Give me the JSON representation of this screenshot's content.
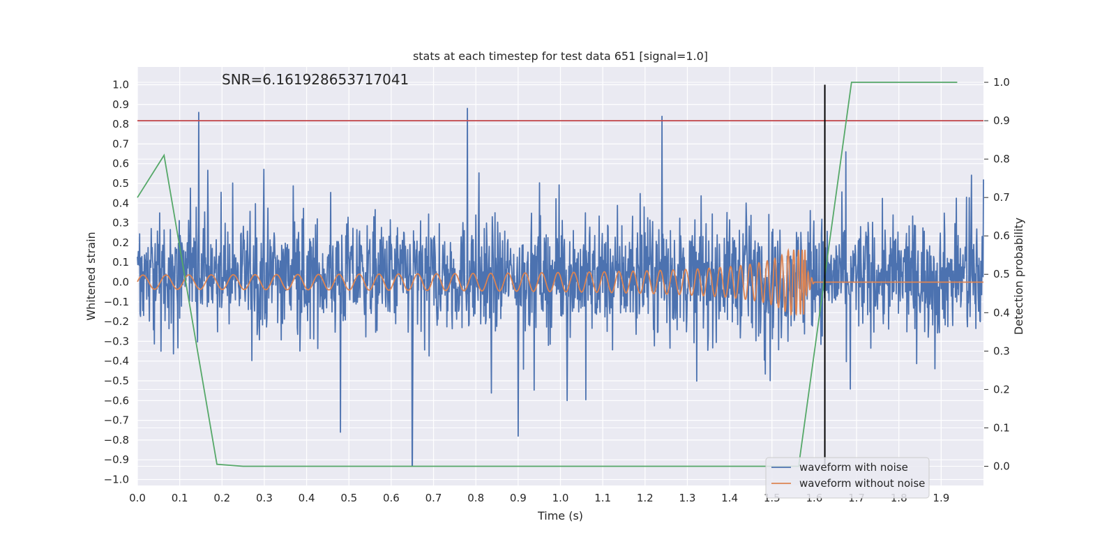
{
  "chart_data": {
    "type": "line",
    "title": "stats at each timestep for test data 651 [signal=1.0]",
    "xlabel": "Time (s)",
    "ylabel_left": "Whitened strain",
    "ylabel_right": "Detection probability",
    "annotation": "SNR=6.161928653717041",
    "xlim": [
      0.0,
      2.0
    ],
    "ylim_left": [
      -1.03,
      1.09
    ],
    "ylim_right": [
      -0.05,
      1.04
    ],
    "x_ticks": [
      "0.0",
      "0.1",
      "0.2",
      "0.3",
      "0.4",
      "0.5",
      "0.6",
      "0.7",
      "0.8",
      "0.9",
      "1.0",
      "1.1",
      "1.2",
      "1.3",
      "1.4",
      "1.5",
      "1.6",
      "1.7",
      "1.8",
      "1.9"
    ],
    "y_ticks_left": [
      "1.0",
      "0.9",
      "0.8",
      "0.7",
      "0.6",
      "0.5",
      "0.4",
      "0.3",
      "0.2",
      "0.1",
      "0.0",
      "−0.1",
      "−0.2",
      "−0.3",
      "−0.4",
      "−0.5",
      "−0.6",
      "−0.7",
      "−0.8",
      "−0.9",
      "−1.0"
    ],
    "y_ticks_right": [
      "1.0",
      "0.9",
      "0.8",
      "0.7",
      "0.6",
      "0.5",
      "0.4",
      "0.3",
      "0.2",
      "0.1",
      "0.0"
    ],
    "grid": true,
    "legend_position": "lower-right",
    "series": [
      {
        "name": "waveform with noise",
        "axis": "left",
        "color": "#4c72b0",
        "description": "dense whitened noise, roughly within -0.55..0.65 with spikes up to 0.88 and down to -0.93",
        "notable_peaks": [
          {
            "x": 0.145,
            "y": 0.86
          },
          {
            "x": 0.78,
            "y": 0.88
          },
          {
            "x": 1.24,
            "y": 0.84
          },
          {
            "x": 0.65,
            "y": -0.93
          },
          {
            "x": 0.9,
            "y": -0.78
          },
          {
            "x": 0.48,
            "y": -0.76
          }
        ]
      },
      {
        "name": "waveform without noise",
        "axis": "left",
        "color": "#dd8452",
        "description": "chirp: small oscillation growing in amplitude and frequency, peaking near 1.58 s then flat at 0",
        "chirp": {
          "start_amp": 0.02,
          "peak_amp": 0.18,
          "merger_time": 1.58,
          "start_period": 0.055
        }
      },
      {
        "name": "",
        "axis": "right",
        "color": "#55a868",
        "x": [
          0.0,
          0.063,
          0.188,
          0.25,
          1.0,
          1.5,
          1.563,
          1.688,
          1.938
        ],
        "y": [
          0.7,
          0.81,
          0.005,
          0.0,
          0.0,
          0.0,
          0.0,
          1.0,
          1.0
        ]
      }
    ],
    "hlines": [
      {
        "y_right": 0.9,
        "color": "#c44e52"
      }
    ],
    "vlines": [
      {
        "x": 1.625,
        "y_from_left": -0.93,
        "y_to_left": 1.0,
        "color": "#000000"
      }
    ]
  }
}
